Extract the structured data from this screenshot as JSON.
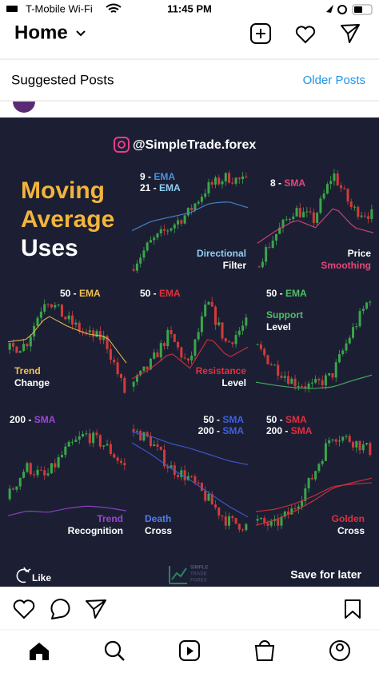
{
  "status_bar": {
    "carrier": "T-Mobile Wi-Fi",
    "time": "11:45 PM"
  },
  "header": {
    "title": "Home"
  },
  "suggested": {
    "title": "Suggested Posts",
    "link": "Older Posts"
  },
  "post": {
    "handle": "@SimpleTrade.forex",
    "title": [
      "Moving",
      "Average",
      "Uses"
    ],
    "panels": [
      {
        "indicators": [
          {
            "period": "9 -",
            "kind": "EMA",
            "color": "#4a90e2"
          },
          {
            "period": "21 -",
            "kind": "EMA",
            "color": "#8fd0f5"
          }
        ],
        "caption": [
          {
            "text": "Directional",
            "color": "#8fd0f5"
          },
          {
            "text": "Filter",
            "color": "#ffffff"
          }
        ]
      },
      {
        "indicators": [
          {
            "period": "8 -",
            "kind": "SMA",
            "color": "#e8457a"
          }
        ],
        "caption": [
          {
            "text": "Price",
            "color": "#ffffff"
          },
          {
            "text": "Smoothing",
            "color": "#e8457a"
          }
        ]
      },
      {
        "indicators": [
          {
            "period": "50 -",
            "kind": "EMA",
            "color": "#f2c14e"
          }
        ],
        "caption": [
          {
            "text": "Trend",
            "color": "#f2c14e"
          },
          {
            "text": "Change",
            "color": "#ffffff"
          }
        ]
      },
      {
        "indicators": [
          {
            "period": "50 -",
            "kind": "EMA",
            "color": "#e0303e"
          }
        ],
        "caption": [
          {
            "text": "Resistance",
            "color": "#e0303e"
          },
          {
            "text": "Level",
            "color": "#ffffff"
          }
        ]
      },
      {
        "indicators": [
          {
            "period": "50 -",
            "kind": "EMA",
            "color": "#4cc064"
          }
        ],
        "caption": [
          {
            "text": "Support",
            "color": "#4cc064"
          },
          {
            "text": "Level",
            "color": "#ffffff"
          }
        ]
      },
      {
        "indicators": [
          {
            "period": "200 -",
            "kind": "SMA",
            "color": "#9b45d8"
          }
        ],
        "caption": [
          {
            "text": "Trend",
            "color": "#9b45d8"
          },
          {
            "text": "Recognition",
            "color": "#ffffff"
          }
        ]
      },
      {
        "indicators": [
          {
            "period": "50 -",
            "kind": "SMA",
            "color": "#3f5fe0"
          },
          {
            "period": "200 -",
            "kind": "SMA",
            "color": "#3f5fe0"
          }
        ],
        "caption": [
          {
            "text": "Death",
            "color": "#4f7ff0"
          },
          {
            "text": "Cross",
            "color": "#ffffff"
          }
        ]
      },
      {
        "indicators": [
          {
            "period": "50 -",
            "kind": "SMA",
            "color": "#e0303e"
          },
          {
            "period": "200 -",
            "kind": "SMA",
            "color": "#e0303e"
          }
        ],
        "caption": [
          {
            "text": "Golden",
            "color": "#e0303e"
          },
          {
            "text": "Cross",
            "color": "#ffffff"
          }
        ]
      }
    ],
    "like": "Like",
    "logo": [
      "SIMPLE",
      "TRADE",
      "FOREX"
    ],
    "save": "Save for later"
  }
}
